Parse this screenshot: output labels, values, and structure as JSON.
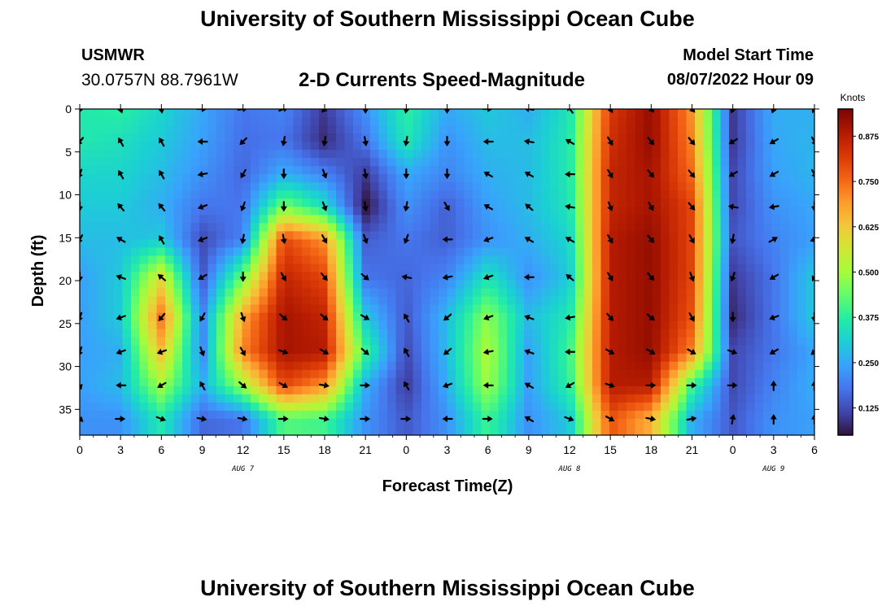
{
  "page": {
    "title": "University of Southern Mississippi Ocean Cube",
    "footer_title": "University of Southern Mississippi Ocean Cube",
    "station_id": "USMWR",
    "station_coords": "30.0757N  88.7961W",
    "subtitle": "2-D Currents Speed-Magnitude",
    "start_label": "Model Start Time",
    "start_value": "08/07/2022 Hour 09"
  },
  "colors": {
    "arrow": "#000000",
    "ramp": [
      "#30123b",
      "#4145ab",
      "#4675ed",
      "#39a2fc",
      "#1bcfd4",
      "#24eca6",
      "#61fc6c",
      "#a4fc3b",
      "#d1e834",
      "#f3c63a",
      "#fe9b2d",
      "#f36315",
      "#d93806",
      "#b11901",
      "#7a0402"
    ]
  },
  "chart_data": {
    "type": "heatmap",
    "title": "2-D Currents Speed-Magnitude",
    "xlabel": "Forecast Time(Z)",
    "ylabel": "Depth (ft)",
    "x_hours_range": [
      0,
      54
    ],
    "y_range": [
      0,
      38
    ],
    "x_ticks": [
      {
        "hour": 0,
        "label": "0"
      },
      {
        "hour": 3,
        "label": "3"
      },
      {
        "hour": 6,
        "label": "6"
      },
      {
        "hour": 9,
        "label": "9"
      },
      {
        "hour": 12,
        "label": "12"
      },
      {
        "hour": 15,
        "label": "15"
      },
      {
        "hour": 18,
        "label": "18"
      },
      {
        "hour": 21,
        "label": "21"
      },
      {
        "hour": 24,
        "label": "0"
      },
      {
        "hour": 27,
        "label": "3"
      },
      {
        "hour": 30,
        "label": "6"
      },
      {
        "hour": 33,
        "label": "9"
      },
      {
        "hour": 36,
        "label": "12"
      },
      {
        "hour": 39,
        "label": "15"
      },
      {
        "hour": 42,
        "label": "18"
      },
      {
        "hour": 45,
        "label": "21"
      },
      {
        "hour": 48,
        "label": "0"
      },
      {
        "hour": 51,
        "label": "3"
      },
      {
        "hour": 54,
        "label": "6"
      }
    ],
    "y_ticks": [
      0,
      5,
      10,
      15,
      20,
      25,
      30,
      35
    ],
    "day_labels": [
      {
        "hour": 12,
        "label": "AUG 7"
      },
      {
        "hour": 36,
        "label": "AUG 8"
      },
      {
        "hour": 51,
        "label": "AUG 9"
      }
    ],
    "colorbar": {
      "unit": "Knots",
      "range": [
        0.05,
        0.95
      ],
      "ticks": [
        {
          "value": 0.875,
          "label": "0.875"
        },
        {
          "value": 0.75,
          "label": "0.750"
        },
        {
          "value": 0.625,
          "label": "0.625"
        },
        {
          "value": 0.5,
          "label": "0.500"
        },
        {
          "value": 0.375,
          "label": "0.375"
        },
        {
          "value": 0.25,
          "label": "0.250"
        },
        {
          "value": 0.125,
          "label": "0.125"
        }
      ]
    },
    "depth_levels_ft": [
      0,
      3.8,
      7.6,
      11.4,
      15.2,
      19.6,
      24.3,
      28.3,
      32.2,
      36.1
    ],
    "hours": [
      0,
      3,
      6,
      9,
      12,
      15,
      18,
      21,
      24,
      27,
      30,
      33,
      36,
      39,
      42,
      45,
      48,
      51,
      54
    ],
    "speed_knots": [
      [
        0.36,
        0.38,
        0.32,
        0.25,
        0.18,
        0.2,
        0.1,
        0.22,
        0.38,
        0.25,
        0.3,
        0.26,
        0.35,
        0.82,
        0.92,
        0.7,
        0.1,
        0.26,
        0.26
      ],
      [
        0.36,
        0.34,
        0.3,
        0.24,
        0.17,
        0.18,
        0.08,
        0.18,
        0.36,
        0.22,
        0.28,
        0.28,
        0.36,
        0.84,
        0.92,
        0.72,
        0.1,
        0.25,
        0.27
      ],
      [
        0.32,
        0.32,
        0.28,
        0.22,
        0.16,
        0.26,
        0.2,
        0.1,
        0.25,
        0.2,
        0.26,
        0.28,
        0.36,
        0.86,
        0.9,
        0.75,
        0.12,
        0.24,
        0.27
      ],
      [
        0.3,
        0.3,
        0.26,
        0.18,
        0.18,
        0.46,
        0.34,
        0.05,
        0.22,
        0.15,
        0.24,
        0.28,
        0.35,
        0.86,
        0.9,
        0.8,
        0.12,
        0.22,
        0.25
      ],
      [
        0.28,
        0.28,
        0.3,
        0.12,
        0.2,
        0.8,
        0.7,
        0.15,
        0.18,
        0.15,
        0.22,
        0.26,
        0.32,
        0.88,
        0.92,
        0.8,
        0.14,
        0.2,
        0.24
      ],
      [
        0.24,
        0.3,
        0.58,
        0.14,
        0.45,
        0.86,
        0.8,
        0.18,
        0.16,
        0.2,
        0.35,
        0.22,
        0.3,
        0.88,
        0.92,
        0.8,
        0.1,
        0.18,
        0.3
      ],
      [
        0.24,
        0.3,
        0.74,
        0.2,
        0.68,
        0.9,
        0.86,
        0.3,
        0.14,
        0.28,
        0.48,
        0.28,
        0.36,
        0.88,
        0.92,
        0.78,
        0.08,
        0.18,
        0.3
      ],
      [
        0.24,
        0.26,
        0.64,
        0.2,
        0.72,
        0.9,
        0.88,
        0.4,
        0.12,
        0.28,
        0.52,
        0.24,
        0.4,
        0.88,
        0.92,
        0.72,
        0.12,
        0.18,
        0.25
      ],
      [
        0.24,
        0.28,
        0.5,
        0.26,
        0.5,
        0.8,
        0.7,
        0.26,
        0.1,
        0.26,
        0.5,
        0.24,
        0.38,
        0.88,
        0.88,
        0.4,
        0.12,
        0.2,
        0.26
      ],
      [
        0.22,
        0.22,
        0.36,
        0.16,
        0.18,
        0.42,
        0.4,
        0.22,
        0.14,
        0.22,
        0.4,
        0.22,
        0.3,
        0.78,
        0.66,
        0.26,
        0.14,
        0.22,
        0.24
      ]
    ],
    "direction_deg": [
      [
        200,
        160,
        170,
        90,
        80,
        70,
        220,
        180,
        190,
        180,
        90,
        280,
        320,
        150,
        140,
        140,
        200,
        200,
        210
      ],
      [
        220,
        330,
        330,
        270,
        225,
        190,
        190,
        170,
        190,
        180,
        270,
        280,
        300,
        150,
        140,
        140,
        240,
        240,
        150
      ],
      [
        200,
        330,
        330,
        260,
        210,
        180,
        160,
        170,
        180,
        180,
        300,
        300,
        270,
        150,
        140,
        140,
        240,
        240,
        150
      ],
      [
        180,
        320,
        320,
        250,
        200,
        180,
        160,
        170,
        190,
        150,
        300,
        310,
        280,
        160,
        150,
        140,
        280,
        260,
        180
      ],
      [
        210,
        300,
        330,
        250,
        190,
        170,
        150,
        160,
        200,
        270,
        250,
        300,
        300,
        150,
        140,
        150,
        190,
        60,
        250
      ],
      [
        180,
        290,
        310,
        240,
        180,
        150,
        140,
        130,
        280,
        260,
        250,
        270,
        310,
        150,
        140,
        160,
        200,
        240,
        210
      ],
      [
        200,
        250,
        220,
        210,
        160,
        130,
        130,
        120,
        330,
        230,
        250,
        290,
        260,
        140,
        130,
        150,
        180,
        250,
        180
      ],
      [
        200,
        250,
        250,
        160,
        150,
        110,
        120,
        130,
        330,
        230,
        260,
        290,
        270,
        120,
        120,
        120,
        110,
        240,
        230
      ],
      [
        160,
        270,
        240,
        330,
        130,
        120,
        100,
        90,
        330,
        250,
        270,
        300,
        240,
        110,
        90,
        90,
        90,
        0,
        0
      ],
      [
        130,
        90,
        110,
        100,
        100,
        90,
        100,
        90,
        90,
        270,
        90,
        300,
        110,
        120,
        100,
        80,
        10,
        0,
        0
      ]
    ]
  }
}
